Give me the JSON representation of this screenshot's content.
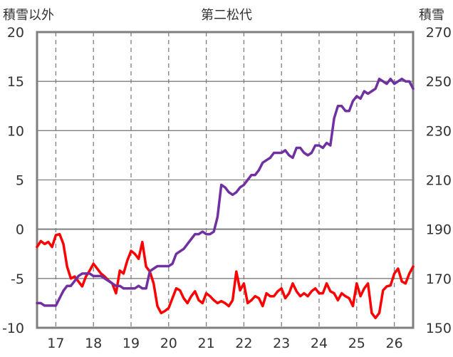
{
  "colors": {
    "snow_other": "#ff0000",
    "snow_total": "#7030a0",
    "frame": "#7f7f7f",
    "grid": "#7f7f7f",
    "text": "#333333"
  },
  "chart_data": {
    "type": "line",
    "title": "第二松代",
    "left_axis_label": "積雪以外",
    "right_axis_label": "積雪",
    "x_ticks": [
      "17",
      "18",
      "19",
      "20",
      "21",
      "22",
      "23",
      "24",
      "25",
      "26"
    ],
    "x_range": [
      16.5,
      26.5
    ],
    "y_left": {
      "range": [
        -10,
        20
      ],
      "ticks": [
        20,
        15,
        10,
        5,
        0,
        -5,
        -10
      ]
    },
    "y_right": {
      "range": [
        150,
        270
      ],
      "ticks": [
        270,
        250,
        230,
        210,
        190,
        170,
        150
      ]
    },
    "grid": true,
    "legend": "none",
    "series": [
      {
        "axis": "left",
        "color": "#ff0000",
        "x": [
          16.5,
          16.6,
          16.7,
          16.8,
          16.9,
          17.0,
          17.1,
          17.2,
          17.3,
          17.4,
          17.5,
          17.6,
          17.7,
          17.8,
          17.9,
          18.0,
          18.1,
          18.2,
          18.3,
          18.4,
          18.5,
          18.6,
          18.7,
          18.8,
          18.9,
          19.0,
          19.1,
          19.2,
          19.3,
          19.4,
          19.5,
          19.6,
          19.7,
          19.8,
          19.9,
          20.0,
          20.1,
          20.2,
          20.3,
          20.4,
          20.5,
          20.6,
          20.7,
          20.8,
          20.9,
          21.0,
          21.1,
          21.2,
          21.3,
          21.4,
          21.5,
          21.6,
          21.7,
          21.8,
          21.9,
          22.0,
          22.1,
          22.2,
          22.3,
          22.4,
          22.5,
          22.6,
          22.7,
          22.8,
          22.9,
          23.0,
          23.1,
          23.2,
          23.3,
          23.4,
          23.5,
          23.6,
          23.7,
          23.8,
          23.9,
          24.0,
          24.1,
          24.2,
          24.3,
          24.4,
          24.5,
          24.6,
          24.7,
          24.8,
          24.9,
          25.0,
          25.1,
          25.2,
          25.3,
          25.4,
          25.5,
          25.6,
          25.7,
          25.8,
          25.9,
          26.0,
          26.1,
          26.2,
          26.3,
          26.4,
          26.5
        ],
        "values": [
          -1.8,
          -1.2,
          -1.5,
          -1.3,
          -1.8,
          -0.6,
          -0.5,
          -1.5,
          -3.8,
          -5.0,
          -4.8,
          -5.3,
          -5.8,
          -4.8,
          -4.2,
          -3.5,
          -4.0,
          -4.5,
          -4.8,
          -5.2,
          -5.5,
          -6.5,
          -4.2,
          -4.5,
          -3.2,
          -2.2,
          -2.5,
          -3.0,
          -1.3,
          -3.8,
          -4.3,
          -5.5,
          -7.8,
          -8.5,
          -8.3,
          -8.0,
          -7.0,
          -6.0,
          -6.2,
          -7.0,
          -7.5,
          -6.8,
          -6.3,
          -7.2,
          -7.5,
          -6.5,
          -6.8,
          -7.2,
          -7.5,
          -7.3,
          -7.5,
          -7.8,
          -7.2,
          -4.3,
          -6.2,
          -5.5,
          -7.5,
          -7.2,
          -6.8,
          -7.0,
          -7.8,
          -6.5,
          -6.8,
          -6.8,
          -6.3,
          -6.0,
          -7.0,
          -6.5,
          -5.5,
          -6.3,
          -6.8,
          -6.5,
          -6.8,
          -6.3,
          -6.0,
          -6.5,
          -6.5,
          -5.5,
          -6.3,
          -6.5,
          -7.2,
          -6.5,
          -6.8,
          -7.0,
          -7.8,
          -5.5,
          -6.8,
          -6.0,
          -5.5,
          -8.5,
          -9.0,
          -8.5,
          -6.2,
          -5.8,
          -5.7,
          -4.5,
          -4.0,
          -5.3,
          -5.5,
          -4.5,
          -3.8
        ]
      },
      {
        "axis": "right",
        "color": "#7030a0",
        "x": [
          16.5,
          16.6,
          16.7,
          16.8,
          16.9,
          17.0,
          17.1,
          17.2,
          17.3,
          17.4,
          17.5,
          17.6,
          17.7,
          17.8,
          17.9,
          18.0,
          18.1,
          18.2,
          18.3,
          18.4,
          18.5,
          18.6,
          18.7,
          18.8,
          18.9,
          19.0,
          19.1,
          19.2,
          19.3,
          19.4,
          19.5,
          19.6,
          19.7,
          19.8,
          19.9,
          20.0,
          20.1,
          20.2,
          20.3,
          20.4,
          20.5,
          20.6,
          20.7,
          20.8,
          20.9,
          21.0,
          21.1,
          21.2,
          21.3,
          21.4,
          21.5,
          21.6,
          21.7,
          21.8,
          21.9,
          22.0,
          22.1,
          22.2,
          22.3,
          22.4,
          22.5,
          22.6,
          22.7,
          22.8,
          22.9,
          23.0,
          23.1,
          23.2,
          23.3,
          23.4,
          23.5,
          23.6,
          23.7,
          23.8,
          23.9,
          24.0,
          24.1,
          24.2,
          24.3,
          24.4,
          24.5,
          24.6,
          24.7,
          24.8,
          24.9,
          25.0,
          25.1,
          25.2,
          25.3,
          25.4,
          25.5,
          25.6,
          25.7,
          25.8,
          25.9,
          26.0,
          26.1,
          26.2,
          26.3,
          26.4,
          26.5
        ],
        "values": [
          160,
          160,
          159,
          159,
          159,
          159,
          162,
          165,
          167,
          167,
          169,
          171,
          172,
          172,
          172,
          171,
          171,
          171,
          170,
          169,
          168,
          167,
          167,
          166,
          166,
          166,
          166,
          167,
          166,
          166,
          173,
          174,
          175,
          175,
          175,
          175,
          176,
          180,
          181,
          182,
          184,
          186,
          188,
          188,
          189,
          188,
          188,
          189,
          195,
          208,
          207,
          205,
          204,
          205,
          207,
          208,
          210,
          212,
          212,
          214,
          217,
          218,
          219,
          221,
          221,
          221,
          222,
          220,
          219,
          223,
          223,
          221,
          220,
          221,
          224,
          224,
          223,
          225,
          224,
          235,
          240,
          240,
          238,
          238,
          242,
          244,
          243,
          246,
          245,
          246,
          247,
          251,
          250,
          249,
          251,
          249,
          250,
          251,
          250,
          250,
          247
        ]
      }
    ]
  }
}
